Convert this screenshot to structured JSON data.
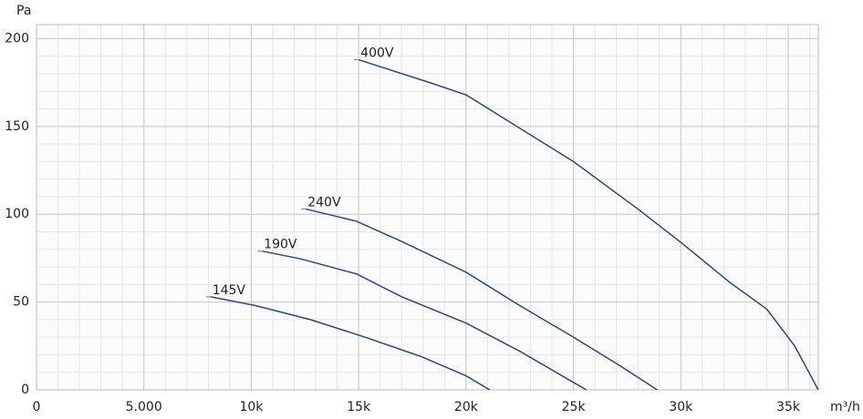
{
  "chart_data": {
    "type": "line",
    "y_label": "Pa",
    "x_label": "m³/h",
    "xlim": [
      0,
      36400
    ],
    "ylim": [
      0,
      208
    ],
    "xticks": [
      0,
      {
        "value": 5000,
        "label": "5.000"
      },
      {
        "value": 10000,
        "label": "10k"
      },
      {
        "value": 15000,
        "label": "15k"
      },
      {
        "value": 20000,
        "label": "20k"
      },
      {
        "value": 25000,
        "label": "25k"
      },
      {
        "value": 30000,
        "label": "30k"
      },
      {
        "value": 35000,
        "label": "35k"
      }
    ],
    "yticks": [
      0,
      50,
      100,
      150,
      200
    ],
    "grid": true,
    "xminor_step": 1000,
    "yminor_step": 10,
    "series": [
      {
        "name": "400V",
        "color": "#2b4a77",
        "x": [
          15000,
          18300,
          20000,
          22500,
          25000,
          28000,
          30000,
          32300,
          34000,
          35300,
          36400
        ],
        "values": [
          188,
          175,
          168,
          149,
          130,
          103,
          84,
          61,
          46,
          25,
          0
        ]
      },
      {
        "name": "240V",
        "color": "#2b4a77",
        "x": [
          12540,
          14900,
          17000,
          20000,
          22500,
          25000,
          27200,
          28900
        ],
        "values": [
          103,
          96,
          84.5,
          67,
          48,
          30,
          13.5,
          0
        ]
      },
      {
        "name": "190V",
        "color": "#2b4a77",
        "x": [
          10500,
          12300,
          14900,
          17000,
          20000,
          22500,
          25600
        ],
        "values": [
          79,
          74.6,
          66,
          53,
          38,
          22,
          0
        ]
      },
      {
        "name": "145V",
        "color": "#2b4a77",
        "x": [
          8100,
          10200,
          12750,
          15300,
          17900,
          20000,
          21100
        ],
        "values": [
          53,
          48,
          40,
          30,
          19,
          8,
          0
        ]
      }
    ]
  }
}
